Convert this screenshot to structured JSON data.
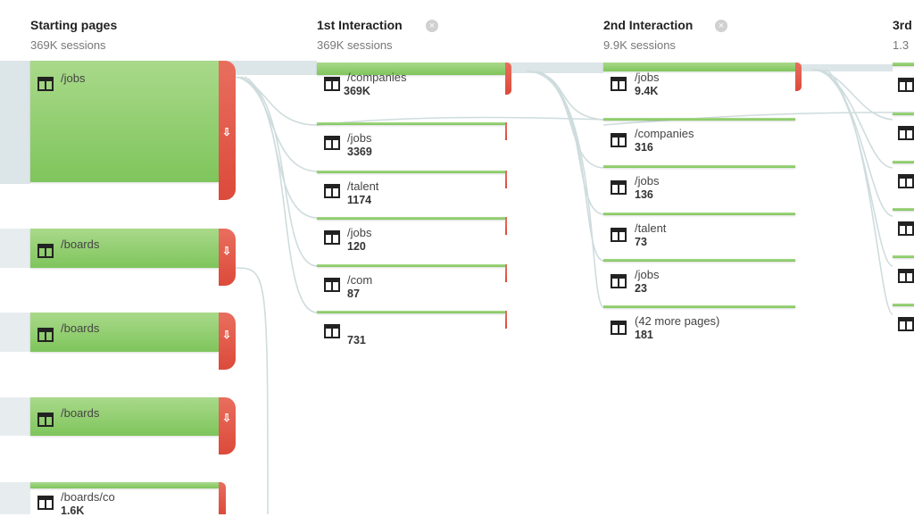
{
  "columns": [
    {
      "title": "Starting pages",
      "sessions": "369K sessions"
    },
    {
      "title": "1st Interaction",
      "sessions": "369K sessions"
    },
    {
      "title": "2nd Interaction",
      "sessions": "9.9K sessions"
    },
    {
      "title": "3rd",
      "sessions": "1.3"
    }
  ],
  "starting_pages": [
    {
      "label": "/jobs",
      "count": ""
    },
    {
      "label": "/boards",
      "count": ""
    },
    {
      "label": "/boards",
      "count": ""
    },
    {
      "label": "/boards",
      "count": ""
    },
    {
      "label": "/boards/co",
      "count": "1.6K"
    }
  ],
  "first_interaction": [
    {
      "label": "/companies",
      "count": "369K"
    },
    {
      "label": "/jobs",
      "count": "3369"
    },
    {
      "label": "/talent",
      "count": "1174"
    },
    {
      "label": "/jobs",
      "count": "120"
    },
    {
      "label": "/com",
      "count": "87"
    },
    {
      "label": "",
      "count": "731"
    }
  ],
  "second_interaction": [
    {
      "label": "/jobs",
      "count": "9.4K"
    },
    {
      "label": "/companies",
      "count": "316"
    },
    {
      "label": "/jobs",
      "count": "136"
    },
    {
      "label": "/talent",
      "count": "73"
    },
    {
      "label": "/jobs",
      "count": "23"
    },
    {
      "label": "(42 more pages)",
      "count": "181"
    }
  ],
  "icons": {
    "page": "page-template-icon",
    "dropoff": "down-arrow-icon",
    "close": "close-circle-icon"
  },
  "colors": {
    "node_green": "#8ccc6a",
    "dropoff_red": "#dc4a3a",
    "flow_gray": "#d6e0e2"
  }
}
